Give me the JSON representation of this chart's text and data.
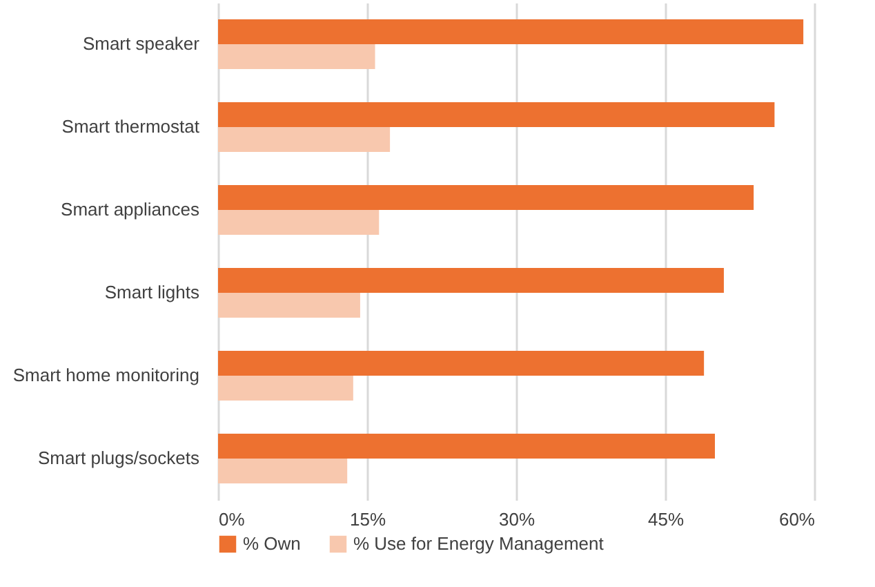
{
  "chart_data": {
    "type": "bar",
    "orientation": "horizontal",
    "categories": [
      "Smart speaker",
      "Smart thermostat",
      "Smart appliances",
      "Smart lights",
      "Smart home monitoring",
      "Smart plugs/sockets"
    ],
    "series": [
      {
        "name": "% Own",
        "color": "#ed7130",
        "values": [
          58.9,
          56.0,
          53.9,
          50.9,
          48.9,
          50.0
        ]
      },
      {
        "name": "% Use for Energy Management",
        "color": "#f8c8ae",
        "values": [
          15.8,
          17.3,
          16.2,
          14.3,
          13.6,
          13.0
        ]
      }
    ],
    "xlim": [
      0,
      60
    ],
    "xticks": [
      {
        "value": 0,
        "label": "0%"
      },
      {
        "value": 15,
        "label": "15%"
      },
      {
        "value": 30,
        "label": "30%"
      },
      {
        "value": 45,
        "label": "45%"
      },
      {
        "value": 60,
        "label": "60%"
      }
    ],
    "grid": "x",
    "legend": "bottom"
  }
}
